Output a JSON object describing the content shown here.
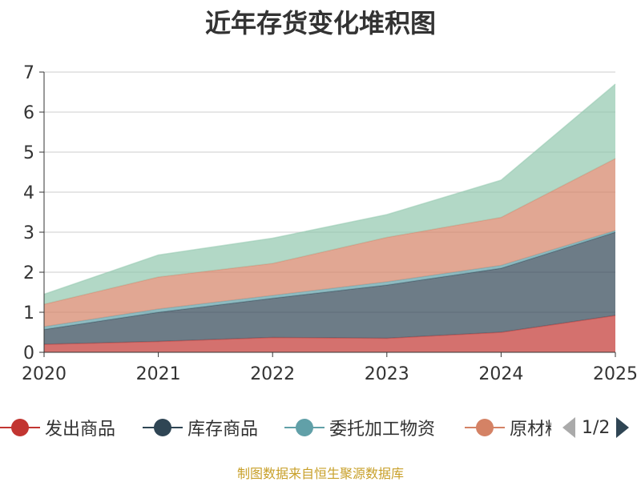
{
  "title": "近年存货变化堆积图",
  "source": "制图数据来自恒生聚源数据库",
  "pager": {
    "text": "1/2"
  },
  "chart_data": {
    "type": "area",
    "stacked": true,
    "x": [
      "2020",
      "2021",
      "2022",
      "2023",
      "2024",
      "2025"
    ],
    "ylim": [
      0,
      7
    ],
    "yticks": [
      "0",
      "1",
      "2",
      "3",
      "4",
      "5",
      "6",
      "7"
    ],
    "grid": true,
    "legend_position": "bottom",
    "series": [
      {
        "name": "发出商品",
        "color": "#c23531",
        "values": [
          0.2,
          0.27,
          0.37,
          0.35,
          0.5,
          0.92
        ]
      },
      {
        "name": "库存商品",
        "color": "#2f4554",
        "values": [
          0.37,
          0.73,
          0.98,
          1.33,
          1.6,
          2.08
        ]
      },
      {
        "name": "委托加工物资",
        "color": "#61a0a8",
        "values": [
          0.07,
          0.08,
          0.07,
          0.08,
          0.07,
          0.04
        ]
      },
      {
        "name": "原材料",
        "color": "#d48265",
        "values": [
          0.56,
          0.8,
          0.8,
          1.11,
          1.2,
          1.8
        ]
      },
      {
        "name": "",
        "color": "#91c7ae",
        "values": [
          0.25,
          0.55,
          0.63,
          0.57,
          0.93,
          1.86
        ]
      }
    ],
    "legend_entries": [
      "发出商品",
      "库存商品",
      "委托加工物资",
      "原材料"
    ]
  }
}
